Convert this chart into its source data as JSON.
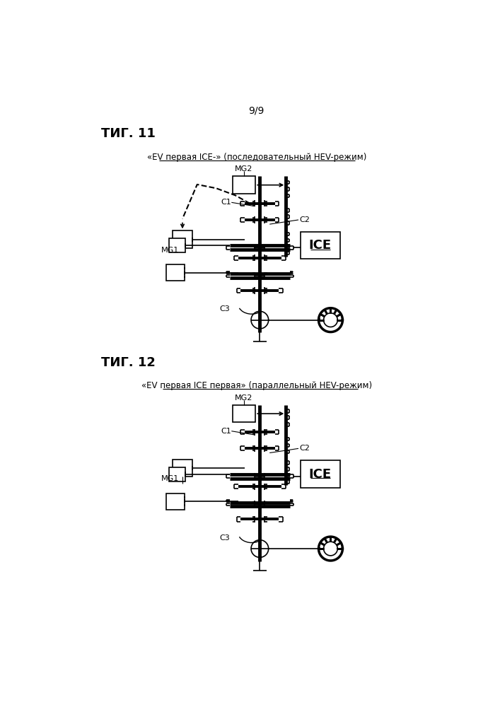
{
  "page_num": "9/9",
  "fig11_label": "ΤИГ. 11",
  "fig12_label": "ΤИГ. 12",
  "fig11_title": "«EV первая ICE-» (последовательный HEV-режим)",
  "fig12_title": "«EV первая ICE первая» (параллельный HEV-режим)",
  "bg_color": "#ffffff"
}
